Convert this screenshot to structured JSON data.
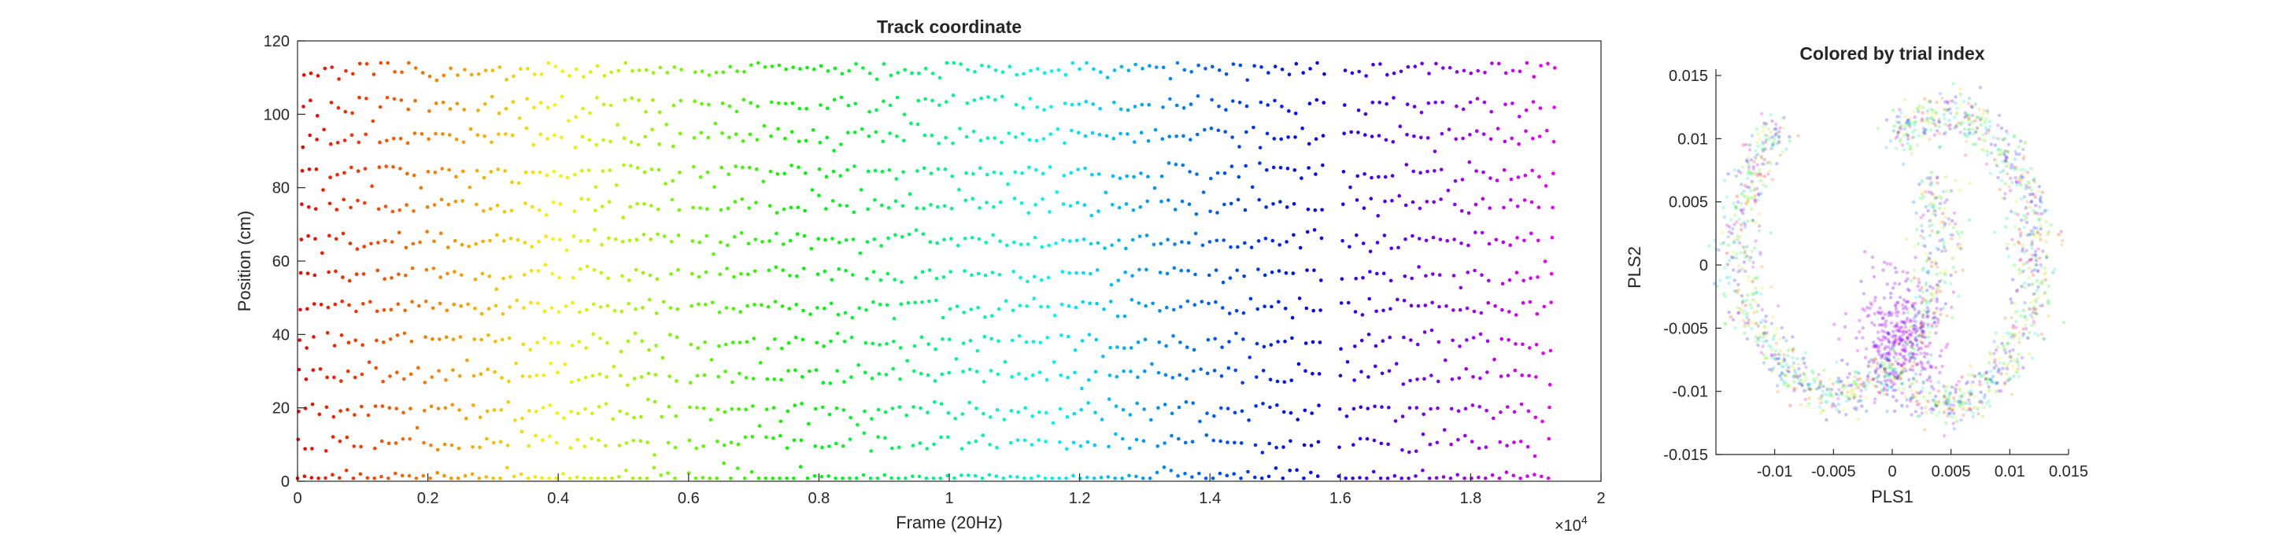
{
  "chart_data": [
    {
      "type": "scatter",
      "title": "Track coordinate",
      "xlabel": "Frame (20Hz)",
      "ylabel": "Position (cm)",
      "xlim": [
        0,
        2
      ],
      "ylim": [
        0,
        120
      ],
      "x_multiplier_label": "×10",
      "x_multiplier_exponent": "4",
      "xticks": [
        0,
        0.2,
        0.4,
        0.6,
        0.8,
        1,
        1.2,
        1.4,
        1.6,
        1.8,
        2
      ],
      "xtick_labels": [
        "0",
        "0.2",
        "0.4",
        "0.6",
        "0.8",
        "1",
        "1.2",
        "1.4",
        "1.6",
        "1.8",
        "2"
      ],
      "yticks": [
        0,
        20,
        40,
        60,
        80,
        100,
        120
      ],
      "ytick_labels": [
        "0",
        "20",
        "40",
        "60",
        "80",
        "100",
        "120"
      ],
      "grid": false,
      "color_by": "frame (hue gradient red → orange → yellow → green → cyan → blue → magenta → red)",
      "data_x_range": [
        0,
        1.93
      ],
      "position_range": [
        1,
        112
      ],
      "approx_laps": 180,
      "gaps": [
        [
          0.595,
          0.605
        ],
        [
          1.575,
          1.595
        ]
      ]
    },
    {
      "type": "scatter",
      "title": "Colored by trial index",
      "xlabel": "PLS1",
      "ylabel": "PLS2",
      "xlim": [
        -0.015,
        0.015
      ],
      "ylim": [
        -0.015,
        0.0155
      ],
      "xticks": [
        -0.01,
        -0.005,
        0,
        0.005,
        0.01,
        0.015
      ],
      "xtick_labels": [
        "-0.01",
        "-0.005",
        "0",
        "0.005",
        "0.01",
        "0.015"
      ],
      "yticks": [
        -0.015,
        -0.01,
        -0.005,
        0,
        0.005,
        0.01,
        0.015
      ],
      "ytick_labels": [
        "-0.015",
        "-0.01",
        "-0.005",
        "0",
        "0.005",
        "0.01",
        "0.015"
      ],
      "grid": false,
      "color_by": "trial index (same hue gradient, semi-transparent points)",
      "structure": "two horseshoe-shaped point clouds (left and right lobes) meeting near the origin, dense magenta cluster near (0.0005, -0.006)"
    }
  ]
}
